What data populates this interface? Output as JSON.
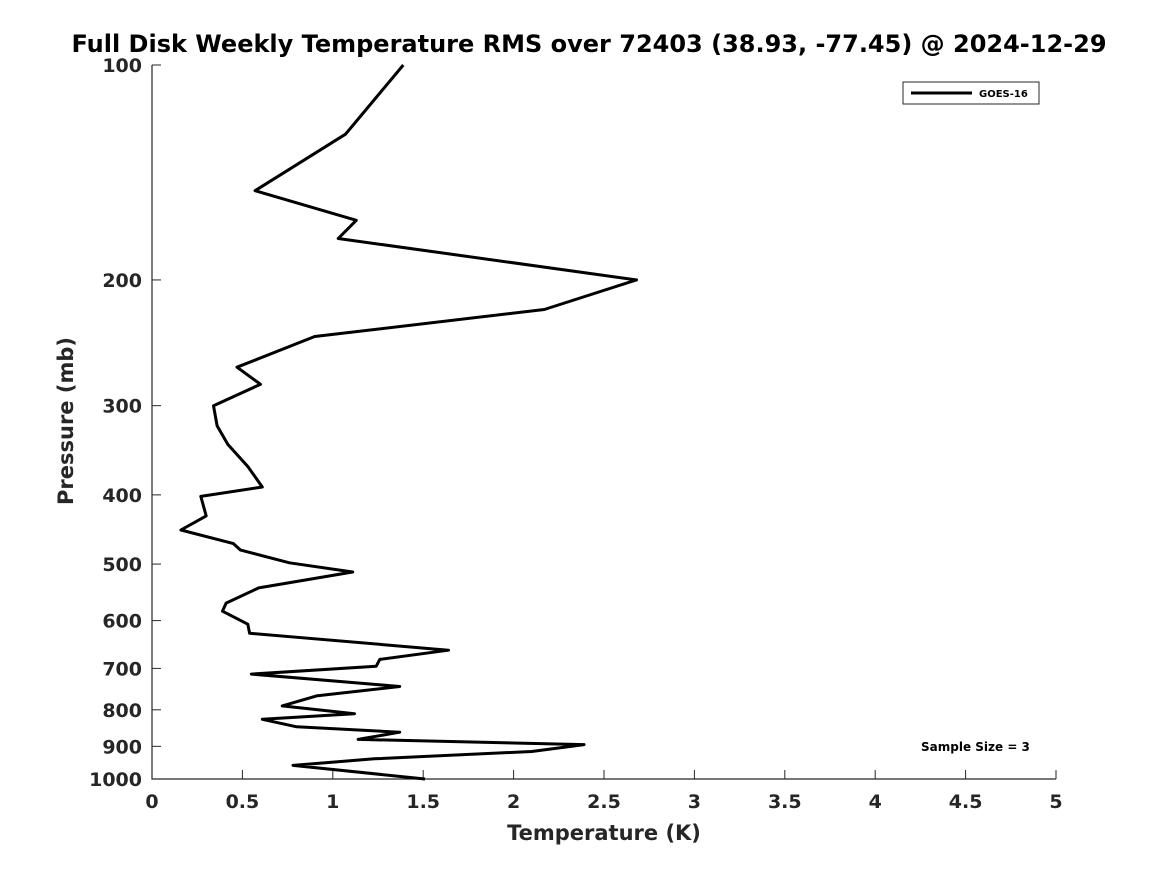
{
  "chart_data": {
    "type": "line",
    "title": "Full Disk Weekly Temperature RMS over 72403 (38.93, -77.45) @ 2024-12-29",
    "xlabel": "Temperature (K)",
    "ylabel": "Pressure (mb)",
    "xlim": [
      0,
      5
    ],
    "ylim": [
      100,
      1000
    ],
    "y_scale": "log",
    "y_reversed": true,
    "x_ticks": [
      "0",
      "0.5",
      "1",
      "1.5",
      "2",
      "2.5",
      "3",
      "3.5",
      "4",
      "4.5",
      "5"
    ],
    "y_ticks": [
      "100",
      "200",
      "300",
      "400",
      "500",
      "600",
      "700",
      "800",
      "900",
      "1000"
    ],
    "grid": false,
    "legend_position": "top-right",
    "annotation": "Sample Size = 3",
    "colors": {
      "series": "#000000",
      "axis": "#262626"
    },
    "series": [
      {
        "name": "GOES-16",
        "x": [
          1.39,
          1.07,
          0.57,
          1.13,
          1.03,
          2.68,
          2.17,
          0.9,
          0.47,
          0.6,
          0.34,
          0.36,
          0.42,
          0.53,
          0.61,
          0.27,
          0.3,
          0.16,
          0.45,
          0.49,
          0.76,
          1.11,
          0.59,
          0.41,
          0.39,
          0.53,
          0.54,
          1.64,
          1.26,
          1.24,
          0.55,
          1.37,
          0.91,
          0.72,
          1.12,
          0.61,
          0.8,
          1.37,
          1.14,
          2.39,
          2.1,
          1.23,
          0.78,
          1.51
        ],
        "y": [
          100,
          125,
          150,
          165,
          175,
          200,
          220,
          240,
          265,
          280,
          300,
          320,
          340,
          365,
          390,
          402,
          428,
          448,
          468,
          478,
          498,
          513,
          540,
          567,
          582,
          607,
          625,
          660,
          680,
          695,
          713,
          742,
          765,
          790,
          810,
          825,
          845,
          860,
          880,
          895,
          915,
          937,
          957,
          1000
        ]
      }
    ]
  }
}
